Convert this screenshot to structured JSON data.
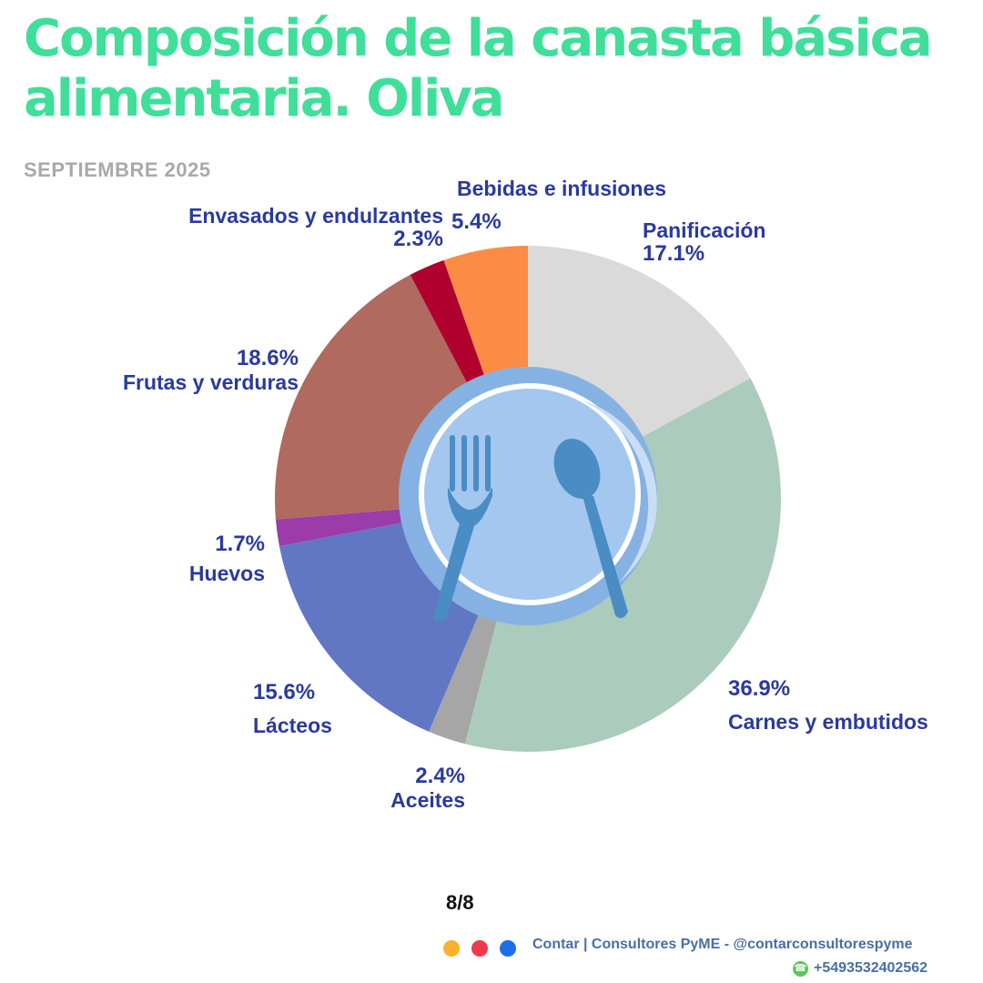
{
  "header": {
    "title_line1": "Composición de la canasta básica",
    "title_line2": "alimentaria.  Oliva",
    "title_color": "#3fdf9a",
    "subtitle": "SEPTIEMBRE 2025"
  },
  "chart_data": {
    "type": "pie",
    "title": "Composición de la canasta básica alimentaria.  Oliva",
    "subtitle": "SEPTIEMBRE 2025",
    "label_color": "#2a3a9e",
    "slices": [
      {
        "name": "Panificación",
        "value": 17.1,
        "label": "17.1%",
        "color": "#dadada"
      },
      {
        "name": "Carnes y embutidos",
        "value": 36.9,
        "label": "36.9%",
        "color": "#abcbbd"
      },
      {
        "name": "Aceites",
        "value": 2.4,
        "label": "2.4%",
        "color": "#a6a6a6"
      },
      {
        "name": "Lácteos",
        "value": 15.6,
        "label": "15.6%",
        "color": "#6177c4"
      },
      {
        "name": "Huevos",
        "value": 1.7,
        "label": "1.7%",
        "color": "#9b3caa"
      },
      {
        "name": "Frutas y verduras",
        "value": 18.6,
        "label": "18.6%",
        "color": "#b06a60"
      },
      {
        "name": "Envasados y endulzantes",
        "value": 2.3,
        "label": "2.3%",
        "color": "#b0002d"
      },
      {
        "name": "Bebidas e infusiones",
        "value": 5.4,
        "label": "5.4%",
        "color": "#fc8b45"
      }
    ],
    "center_icon": "plate-fork-spoon-icon"
  },
  "footer": {
    "page": "8/8",
    "brand": "Contar | Consultores PyME - @contarconsultorespyme",
    "phone": "+5493532402562",
    "phone_icon": "whatsapp-icon",
    "dot_colors": [
      "#fbb12b",
      "#ef3a4d",
      "#1b6fe8"
    ]
  }
}
